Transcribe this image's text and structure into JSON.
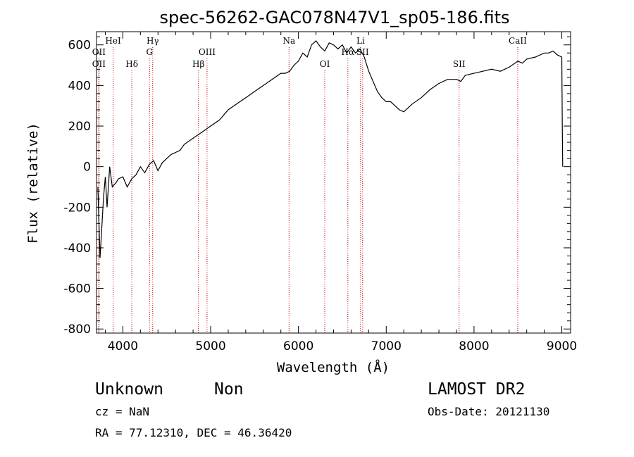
{
  "chart_data": {
    "type": "line",
    "title": "spec-56262-GAC078N47V1_sp05-186.fits",
    "xlabel": "Wavelength (Å)",
    "ylabel": "Flux (relative)",
    "xlim": [
      3700,
      9100
    ],
    "ylim": [
      -820,
      665
    ],
    "xticks": [
      4000,
      5000,
      6000,
      7000,
      8000,
      9000
    ],
    "yticks": [
      -800,
      -600,
      -400,
      -200,
      0,
      200,
      400,
      600
    ],
    "grid": false,
    "line_color": "#000000",
    "marker_color": "#cc0000",
    "series": [
      {
        "x": [
          3715,
          3740,
          3760,
          3780,
          3800,
          3820,
          3850,
          3880,
          3920,
          3950,
          4000,
          4050,
          4100,
          4150,
          4200,
          4250,
          4300,
          4350,
          4400,
          4450,
          4500,
          4550,
          4600,
          4650,
          4700,
          4800,
          4900,
          5000,
          5100,
          5200,
          5300,
          5400,
          5500,
          5600,
          5700,
          5800,
          5850,
          5900,
          5950,
          6000,
          6050,
          6100,
          6150,
          6200,
          6250,
          6300,
          6350,
          6400,
          6450,
          6500,
          6550,
          6600,
          6650,
          6700,
          6750,
          6800,
          6850,
          6900,
          6950,
          7000,
          7050,
          7100,
          7150,
          7200,
          7250,
          7300,
          7400,
          7500,
          7600,
          7700,
          7800,
          7850,
          7900,
          8000,
          8100,
          8200,
          8300,
          8400,
          8500,
          8550,
          8600,
          8700,
          8800,
          8850,
          8900,
          8950,
          9000,
          9005,
          9010
        ],
        "y": [
          -100,
          -450,
          -300,
          -150,
          -50,
          -200,
          0,
          -100,
          -80,
          -60,
          -50,
          -100,
          -60,
          -40,
          0,
          -30,
          10,
          30,
          -20,
          20,
          40,
          60,
          70,
          80,
          110,
          140,
          170,
          200,
          230,
          280,
          310,
          340,
          370,
          400,
          430,
          460,
          460,
          470,
          500,
          520,
          560,
          540,
          600,
          620,
          590,
          570,
          610,
          600,
          580,
          600,
          560,
          590,
          560,
          580,
          540,
          470,
          420,
          370,
          340,
          320,
          320,
          300,
          280,
          270,
          290,
          310,
          340,
          380,
          410,
          430,
          430,
          420,
          450,
          460,
          470,
          480,
          470,
          490,
          520,
          510,
          530,
          540,
          560,
          560,
          570,
          550,
          540,
          200,
          0
        ]
      }
    ],
    "spectral_lines": [
      {
        "label": "OII",
        "wavelength": 3727,
        "row": 2
      },
      {
        "label": "OII",
        "wavelength": 3727,
        "row": 3
      },
      {
        "label": "HeI",
        "wavelength": 3889,
        "row": 1
      },
      {
        "label": "Hδ",
        "wavelength": 4102,
        "row": 3
      },
      {
        "label": "Hγ",
        "wavelength": 4340,
        "row": 1
      },
      {
        "label": "G",
        "wavelength": 4304,
        "row": 2
      },
      {
        "label": "Hβ",
        "wavelength": 4861,
        "row": 3
      },
      {
        "label": "OIII",
        "wavelength": 4959,
        "row": 2
      },
      {
        "label": "Na",
        "wavelength": 5893,
        "row": 1
      },
      {
        "label": "OI",
        "wavelength": 6300,
        "row": 3
      },
      {
        "label": "Hα",
        "wavelength": 6563,
        "row": 2
      },
      {
        "label": "Li",
        "wavelength": 6708,
        "row": 1
      },
      {
        "label": "SII",
        "wavelength": 6731,
        "row": 2
      },
      {
        "label": "SII",
        "wavelength": 7830,
        "row": 3
      },
      {
        "label": "CaII",
        "wavelength": 8498,
        "row": 1
      }
    ]
  },
  "info": {
    "class": "Unknown",
    "subclass": "Non",
    "survey": "LAMOST DR2",
    "cz": "cz = NaN",
    "obs_date": "Obs-Date: 20121130",
    "coords": "RA =  77.12310, DEC =  46.36420"
  }
}
